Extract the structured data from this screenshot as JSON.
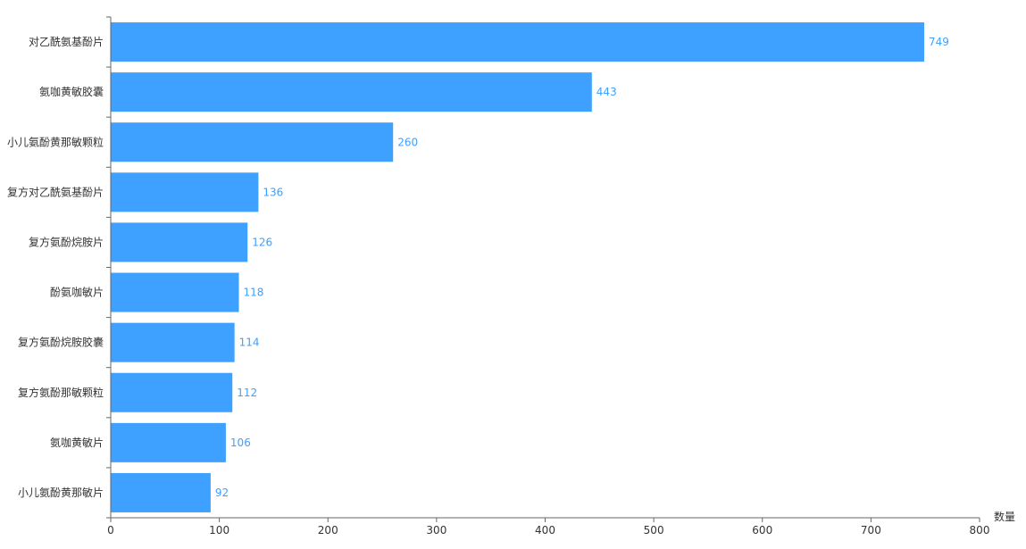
{
  "chart_data": {
    "type": "bar",
    "orientation": "horizontal",
    "categories": [
      "对乙酰氨基酚片",
      "氨咖黄敏胶囊",
      "小儿氨酚黄那敏颗粒",
      "复方对乙酰氨基酚片",
      "复方氨酚烷胺片",
      "酚氨咖敏片",
      "复方氨酚烷胺胶囊",
      "复方氨酚那敏颗粒",
      "氨咖黄敏片",
      "小儿氨酚黄那敏片"
    ],
    "values": [
      749,
      443,
      260,
      136,
      126,
      118,
      114,
      112,
      106,
      92
    ],
    "xlabel": "数量",
    "ylabel": "",
    "xlim": [
      0,
      800
    ],
    "x_ticks": [
      0,
      100,
      200,
      300,
      400,
      500,
      600,
      700,
      800
    ],
    "grid": false,
    "data_labels": true,
    "colors": {
      "bar": "#3ea0ff",
      "data_label": "#3ea0ff",
      "axis": "#666666",
      "text": "#333333"
    }
  }
}
